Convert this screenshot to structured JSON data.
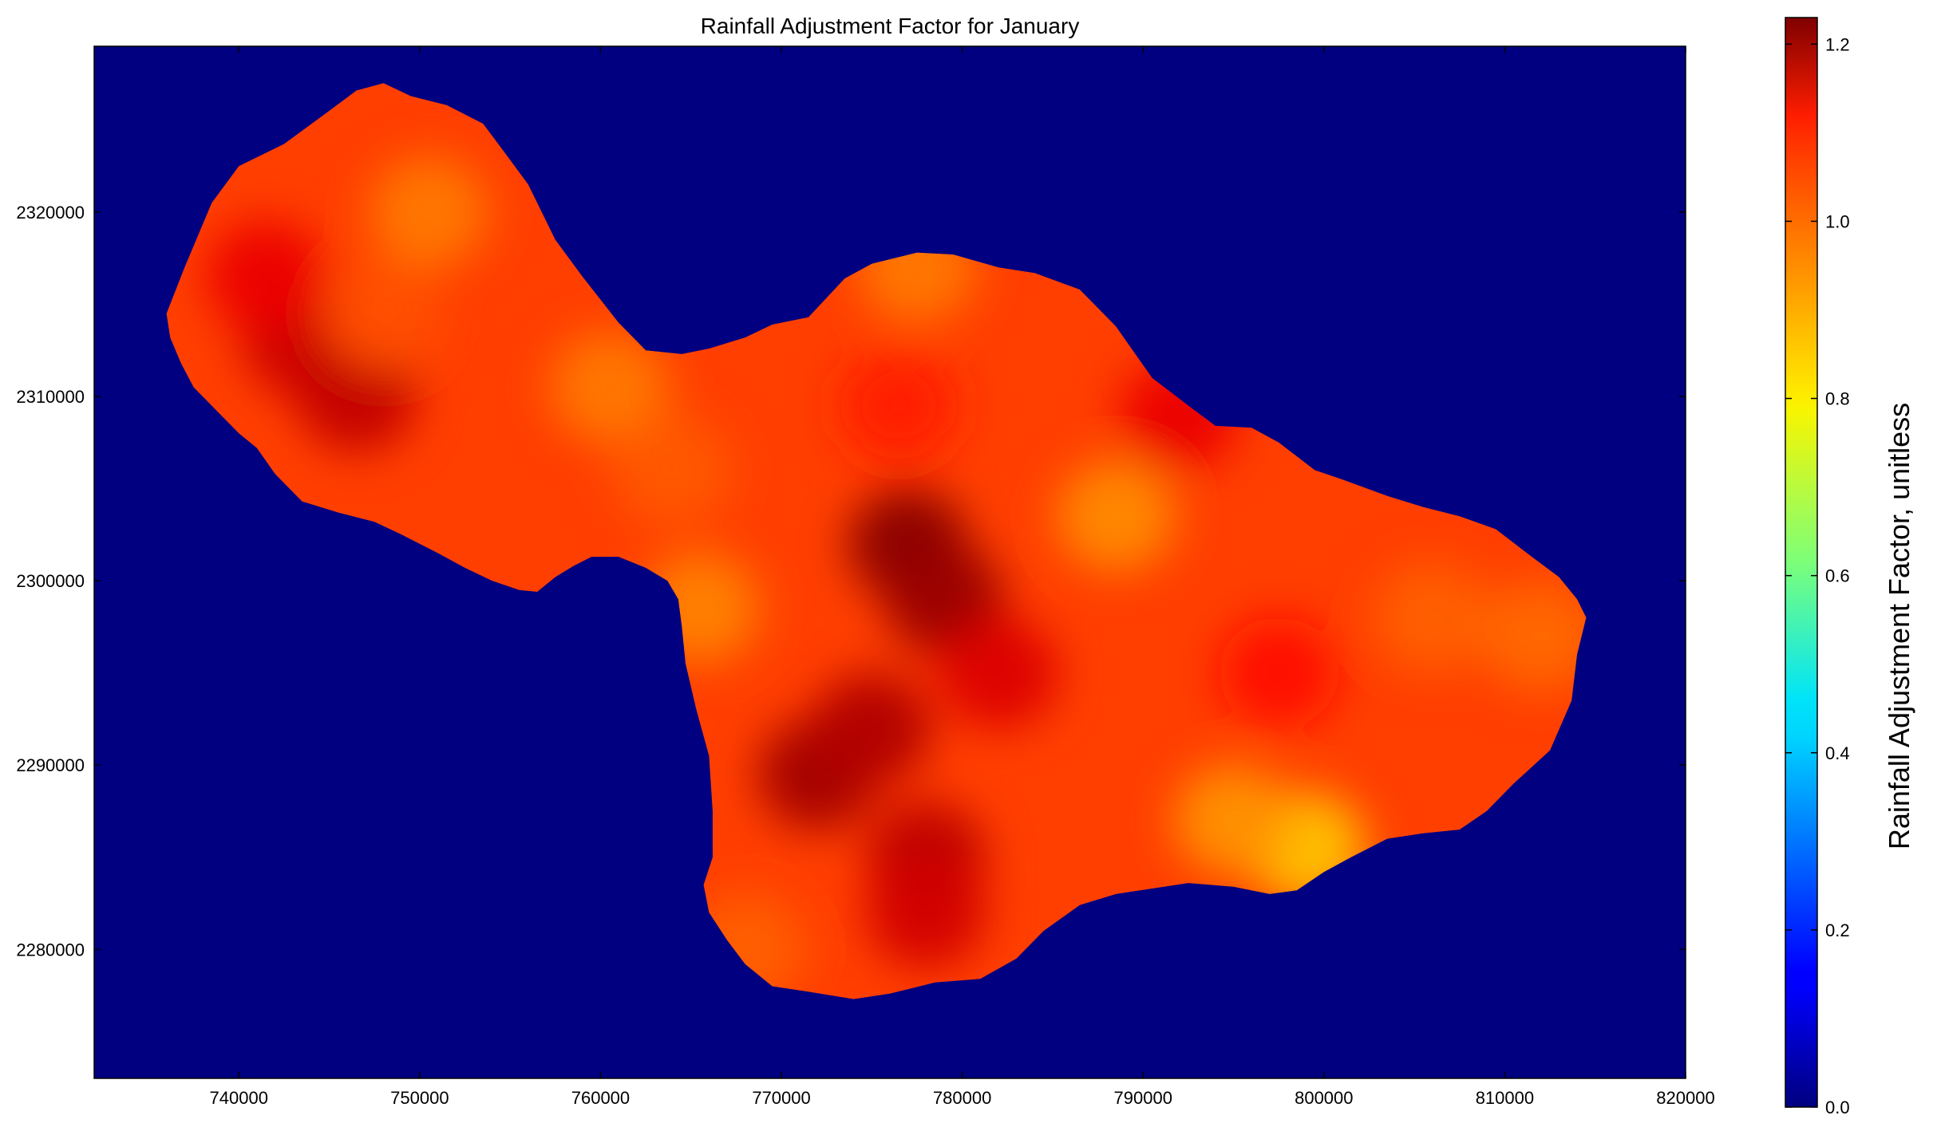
{
  "chart_data": {
    "type": "heatmap",
    "title": "Rainfall Adjustment Factor for January",
    "xlabel": "",
    "ylabel": "",
    "xlim": [
      732000,
      820000
    ],
    "ylim": [
      2273000,
      2329000
    ],
    "x_ticks": [
      740000,
      750000,
      760000,
      770000,
      780000,
      790000,
      800000,
      810000,
      820000
    ],
    "y_ticks": [
      2280000,
      2290000,
      2300000,
      2310000,
      2320000
    ],
    "x_tick_labels": [
      "740000",
      "750000",
      "760000",
      "770000",
      "780000",
      "790000",
      "800000",
      "810000",
      "820000"
    ],
    "y_tick_labels": [
      "2280000",
      "2290000",
      "2300000",
      "2310000",
      "2320000"
    ],
    "background_value": 0.0,
    "colormap": "jet",
    "colorbar": {
      "label": "Rainfall Adjustment Factor, unitless",
      "range": [
        0.0,
        1.23
      ],
      "ticks": [
        0.0,
        0.2,
        0.4,
        0.6,
        0.8,
        1.0,
        1.2
      ],
      "tick_labels": [
        "0.0",
        "0.2",
        "0.4",
        "0.6",
        "0.8",
        "1.0",
        "1.2"
      ]
    },
    "base_value": 1.0,
    "hotspots": [
      {
        "x": 743500,
        "y": 2313000,
        "value": 1.14
      },
      {
        "x": 746500,
        "y": 2310000,
        "value": 1.15
      },
      {
        "x": 741500,
        "y": 2316500,
        "value": 1.1
      },
      {
        "x": 750500,
        "y": 2320000,
        "value": 0.93
      },
      {
        "x": 748000,
        "y": 2314500,
        "value": 0.98
      },
      {
        "x": 760500,
        "y": 2310500,
        "value": 0.93
      },
      {
        "x": 764000,
        "y": 2306000,
        "value": 0.97
      },
      {
        "x": 765500,
        "y": 2298500,
        "value": 0.92
      },
      {
        "x": 777000,
        "y": 2302000,
        "value": 1.22
      },
      {
        "x": 779000,
        "y": 2299000,
        "value": 1.2
      },
      {
        "x": 772000,
        "y": 2289500,
        "value": 1.19
      },
      {
        "x": 775000,
        "y": 2292000,
        "value": 1.17
      },
      {
        "x": 778000,
        "y": 2285000,
        "value": 1.16
      },
      {
        "x": 778000,
        "y": 2282000,
        "value": 1.13
      },
      {
        "x": 782000,
        "y": 2295000,
        "value": 1.12
      },
      {
        "x": 777500,
        "y": 2317000,
        "value": 0.93
      },
      {
        "x": 776500,
        "y": 2309500,
        "value": 1.04
      },
      {
        "x": 792000,
        "y": 2309000,
        "value": 1.1
      },
      {
        "x": 788500,
        "y": 2303500,
        "value": 0.91
      },
      {
        "x": 797500,
        "y": 2295000,
        "value": 1.06
      },
      {
        "x": 799000,
        "y": 2285500,
        "value": 0.84
      },
      {
        "x": 795000,
        "y": 2287000,
        "value": 0.9
      },
      {
        "x": 806000,
        "y": 2298000,
        "value": 0.96
      },
      {
        "x": 812000,
        "y": 2297000,
        "value": 0.95
      },
      {
        "x": 768000,
        "y": 2280000,
        "value": 0.96
      }
    ],
    "island_outline": [
      [
        736000,
        2314500
      ],
      [
        737000,
        2317000
      ],
      [
        738500,
        2320500
      ],
      [
        740000,
        2322500
      ],
      [
        742500,
        2323700
      ],
      [
        745000,
        2325500
      ],
      [
        746500,
        2326600
      ],
      [
        748000,
        2327000
      ],
      [
        749500,
        2326300
      ],
      [
        751500,
        2325800
      ],
      [
        753500,
        2324800
      ],
      [
        754500,
        2323500
      ],
      [
        756000,
        2321500
      ],
      [
        757500,
        2318500
      ],
      [
        759000,
        2316500
      ],
      [
        761000,
        2314000
      ],
      [
        762500,
        2312500
      ],
      [
        764500,
        2312300
      ],
      [
        766000,
        2312600
      ],
      [
        768000,
        2313200
      ],
      [
        769500,
        2313900
      ],
      [
        771500,
        2314300
      ],
      [
        773500,
        2316400
      ],
      [
        775000,
        2317200
      ],
      [
        777500,
        2317800
      ],
      [
        779500,
        2317700
      ],
      [
        782000,
        2317000
      ],
      [
        784000,
        2316700
      ],
      [
        786500,
        2315800
      ],
      [
        788500,
        2313800
      ],
      [
        790500,
        2311000
      ],
      [
        792500,
        2309500
      ],
      [
        794000,
        2308400
      ],
      [
        796000,
        2308300
      ],
      [
        797500,
        2307500
      ],
      [
        799500,
        2306000
      ],
      [
        801000,
        2305500
      ],
      [
        803500,
        2304600
      ],
      [
        805500,
        2304000
      ],
      [
        807500,
        2303500
      ],
      [
        809500,
        2302800
      ],
      [
        811500,
        2301300
      ],
      [
        813000,
        2300200
      ],
      [
        814000,
        2299000
      ],
      [
        814500,
        2298000
      ],
      [
        814000,
        2296000
      ],
      [
        813700,
        2293500
      ],
      [
        812500,
        2290800
      ],
      [
        810500,
        2289000
      ],
      [
        809000,
        2287500
      ],
      [
        807500,
        2286500
      ],
      [
        805500,
        2286300
      ],
      [
        803500,
        2286000
      ],
      [
        801500,
        2285000
      ],
      [
        800000,
        2284200
      ],
      [
        798500,
        2283200
      ],
      [
        797000,
        2283000
      ],
      [
        795000,
        2283400
      ],
      [
        792500,
        2283600
      ],
      [
        790500,
        2283300
      ],
      [
        788500,
        2283000
      ],
      [
        786500,
        2282400
      ],
      [
        784500,
        2281000
      ],
      [
        783000,
        2279500
      ],
      [
        781000,
        2278400
      ],
      [
        778500,
        2278200
      ],
      [
        776000,
        2277600
      ],
      [
        774000,
        2277300
      ],
      [
        771500,
        2277700
      ],
      [
        769500,
        2278000
      ],
      [
        768000,
        2279200
      ],
      [
        767000,
        2280500
      ],
      [
        766000,
        2282000
      ],
      [
        765700,
        2283500
      ],
      [
        766200,
        2285000
      ],
      [
        766200,
        2287500
      ],
      [
        766000,
        2290500
      ],
      [
        765300,
        2293000
      ],
      [
        764700,
        2295500
      ],
      [
        764500,
        2297500
      ],
      [
        764300,
        2299000
      ],
      [
        763700,
        2300000
      ],
      [
        762500,
        2300700
      ],
      [
        761000,
        2301300
      ],
      [
        759500,
        2301300
      ],
      [
        758500,
        2300800
      ],
      [
        757500,
        2300200
      ],
      [
        756500,
        2299400
      ],
      [
        755500,
        2299500
      ],
      [
        754000,
        2300000
      ],
      [
        752500,
        2300700
      ],
      [
        751000,
        2301500
      ],
      [
        749000,
        2302500
      ],
      [
        747500,
        2303200
      ],
      [
        745500,
        2303700
      ],
      [
        743500,
        2304300
      ],
      [
        742000,
        2305800
      ],
      [
        741000,
        2307200
      ],
      [
        740000,
        2308000
      ],
      [
        738700,
        2309300
      ],
      [
        737500,
        2310500
      ],
      [
        736800,
        2311800
      ],
      [
        736200,
        2313200
      ]
    ]
  }
}
